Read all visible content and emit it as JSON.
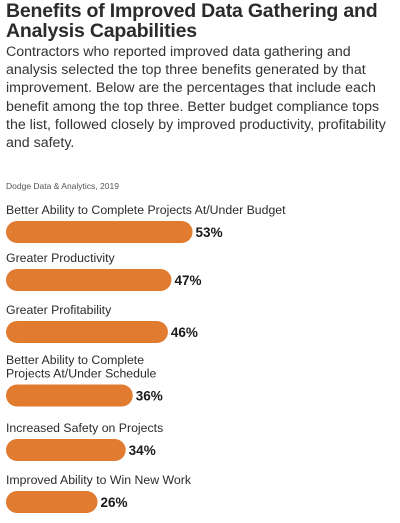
{
  "header": {
    "title": "Benefits of Improved Data Gathering and Analysis Capabilities",
    "description": "Contractors who reported improved data gathering and analysis selected the top three benefits generated by that improvement. Below are the percentages that include each benefit among the top three. Better budget compliance tops the list, followed closely by improved productivity, profitability and safety.",
    "source": "Dodge Data & Analytics, 2019"
  },
  "colors": {
    "bar": "#e07b2f"
  },
  "chart_data": {
    "type": "bar",
    "orientation": "horizontal",
    "categories": [
      "Better Ability to Complete Projects At/Under Budget",
      "Greater Productivity",
      "Greater Profitability",
      "Better Ability to Complete Projects At/Under Schedule",
      "Increased Safety on Projects",
      "Improved Ability to Win New Work"
    ],
    "category_lines": [
      [
        "Better Ability to Complete Projects At/Under Budget"
      ],
      [
        "Greater Productivity"
      ],
      [
        "Greater Profitability"
      ],
      [
        "Better Ability to Complete",
        "Projects At/Under Schedule"
      ],
      [
        "Increased Safety on Projects"
      ],
      [
        "Improved Ability to Win New Work"
      ]
    ],
    "values": [
      53,
      47,
      46,
      36,
      34,
      26
    ],
    "value_labels": [
      "53%",
      "47%",
      "46%",
      "36%",
      "34%",
      "26%"
    ],
    "grid": false
  }
}
